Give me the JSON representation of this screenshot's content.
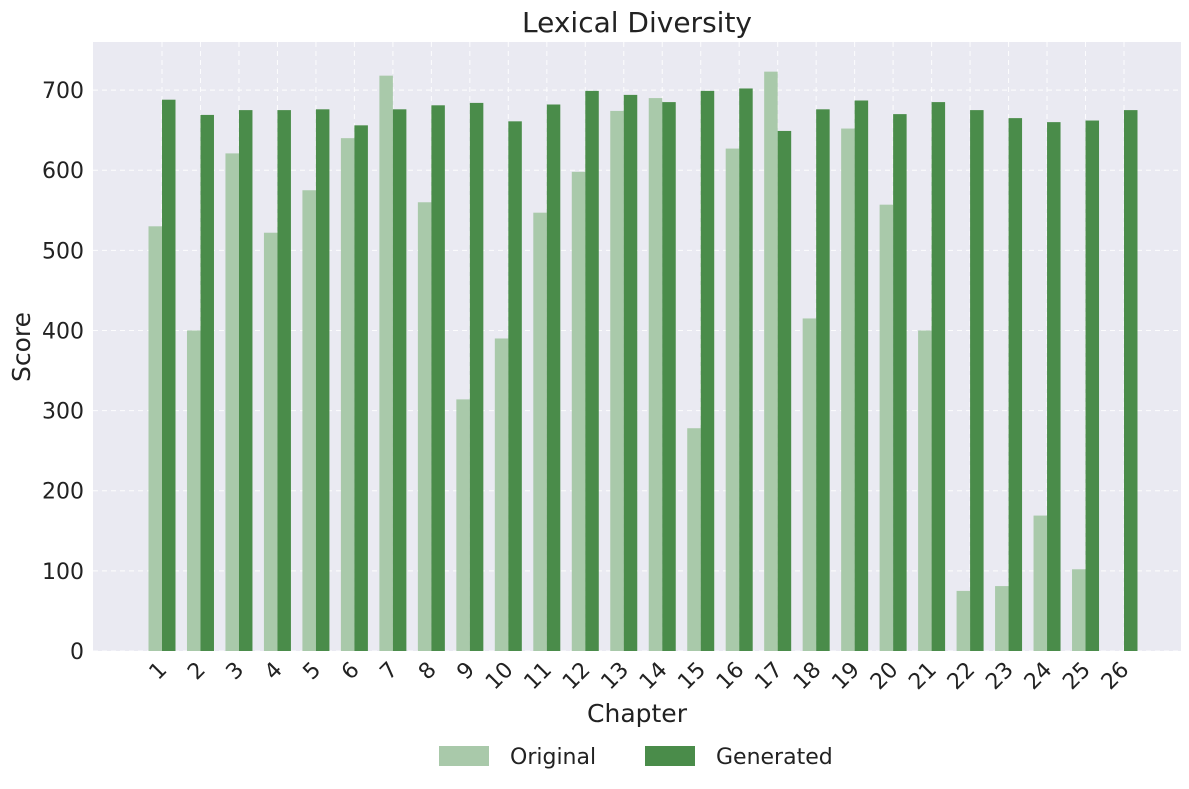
{
  "chart_data": {
    "type": "bar",
    "title": "Lexical Diversity",
    "xlabel": "Chapter",
    "ylabel": "Score",
    "ylim": [
      0,
      760
    ],
    "yticks": [
      0,
      100,
      200,
      300,
      400,
      500,
      600,
      700
    ],
    "grid": true,
    "legend_position": "bottom-center",
    "categories": [
      "1",
      "2",
      "3",
      "4",
      "5",
      "6",
      "7",
      "8",
      "9",
      "10",
      "11",
      "12",
      "13",
      "14",
      "15",
      "16",
      "17",
      "18",
      "19",
      "20",
      "21",
      "22",
      "23",
      "24",
      "25",
      "26"
    ],
    "series": [
      {
        "name": "Original",
        "color": "#a9c9aa",
        "values": [
          530,
          400,
          621,
          522,
          575,
          640,
          718,
          560,
          314,
          390,
          547,
          598,
          674,
          690,
          278,
          627,
          723,
          415,
          652,
          557,
          400,
          75,
          81,
          169,
          102,
          0
        ]
      },
      {
        "name": "Generated",
        "color": "#4a8c4a",
        "values": [
          688,
          669,
          675,
          675,
          676,
          656,
          676,
          681,
          684,
          661,
          682,
          699,
          694,
          685,
          699,
          702,
          649,
          676,
          687,
          670,
          685,
          675,
          665,
          660,
          662,
          675
        ]
      }
    ]
  }
}
